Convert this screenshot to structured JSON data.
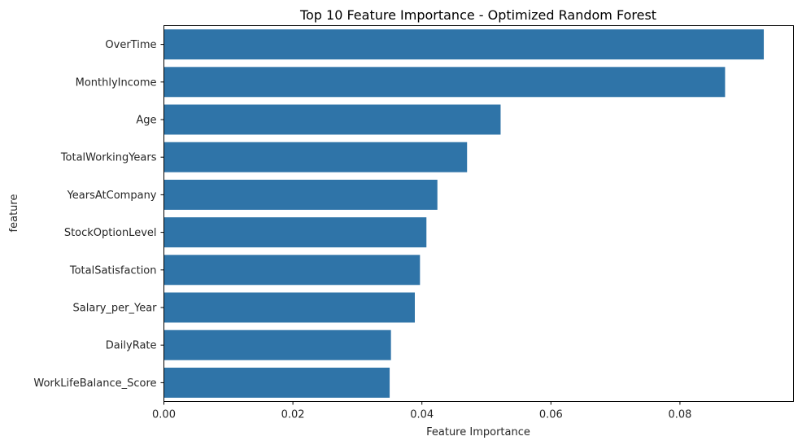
{
  "chart_data": {
    "type": "bar",
    "orientation": "horizontal",
    "title": "Top 10 Feature Importance - Optimized Random Forest",
    "xlabel": "Feature Importance",
    "ylabel": "feature",
    "categories": [
      "OverTime",
      "MonthlyIncome",
      "Age",
      "TotalWorkingYears",
      "YearsAtCompany",
      "StockOptionLevel",
      "TotalSatisfaction",
      "Salary_per_Year",
      "DailyRate",
      "WorkLifeBalance_Score"
    ],
    "values": [
      0.093,
      0.087,
      0.0522,
      0.047,
      0.0424,
      0.0407,
      0.0397,
      0.0389,
      0.0352,
      0.035
    ],
    "xlim": [
      0,
      0.0976
    ],
    "xticks": [
      0.0,
      0.02,
      0.04,
      0.06,
      0.08
    ],
    "xtick_labels": [
      "0.00",
      "0.02",
      "0.04",
      "0.06",
      "0.08"
    ],
    "grid": false,
    "bar_color": "#2f74a8"
  }
}
